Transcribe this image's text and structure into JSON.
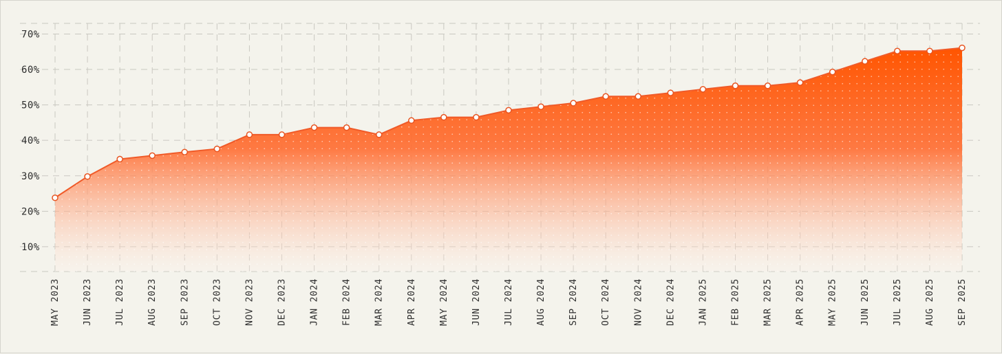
{
  "chart_data": {
    "type": "area",
    "title": "",
    "xlabel": "",
    "ylabel": "",
    "x": [
      "MAY 2023",
      "JUN 2023",
      "JUL 2023",
      "AUG 2023",
      "SEP 2023",
      "OCT 2023",
      "NOV 2023",
      "DEC 2023",
      "JAN 2024",
      "FEB 2024",
      "MAR 2024",
      "APR 2024",
      "MAY 2024",
      "JUN 2024",
      "JUL 2024",
      "AUG 2024",
      "SEP 2024",
      "OCT 2024",
      "NOV 2024",
      "DEC 2024",
      "JAN 2025",
      "FEB 2025",
      "MAR 2025",
      "APR 2025",
      "MAY 2025",
      "JUN 2025",
      "JUL 2025",
      "AUG 2025",
      "SEP 2025"
    ],
    "series": [
      {
        "name": "",
        "values": [
          23.8,
          29.8,
          34.7,
          35.7,
          36.7,
          37.6,
          41.6,
          41.6,
          43.6,
          43.6,
          41.6,
          45.6,
          46.5,
          46.5,
          48.5,
          49.5,
          50.5,
          52.4,
          52.4,
          53.4,
          54.4,
          55.4,
          55.4,
          56.3,
          59.3,
          62.3,
          65.2,
          65.2,
          66.1
        ]
      }
    ],
    "y_ticks": [
      10,
      20,
      30,
      40,
      50,
      60,
      70
    ],
    "y_tick_labels": [
      "10%",
      "20%",
      "30%",
      "40%",
      "50%",
      "60%",
      "70%"
    ],
    "ylim": [
      3,
      73
    ],
    "grid": true,
    "legend": "none",
    "colors": {
      "line": "#f05a28",
      "fill_top": "#ff5500",
      "fill_bottom": "#fff2ea",
      "grid": "#c9c8c1",
      "background": "#f4f3ec",
      "marker_fill": "#ffffff"
    }
  }
}
